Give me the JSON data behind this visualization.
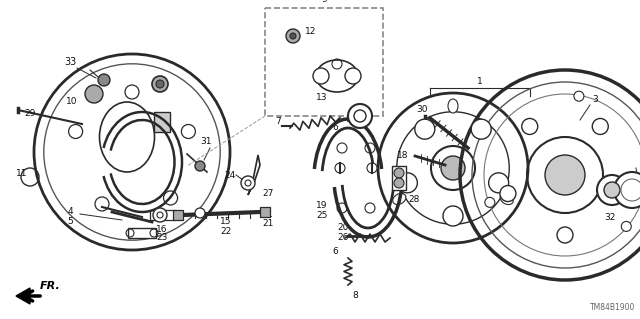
{
  "bg_color": "#ffffff",
  "part_color": "#2a2a2a",
  "watermark": "TM84B1900",
  "fig_w": 6.4,
  "fig_h": 3.19,
  "dpi": 100
}
